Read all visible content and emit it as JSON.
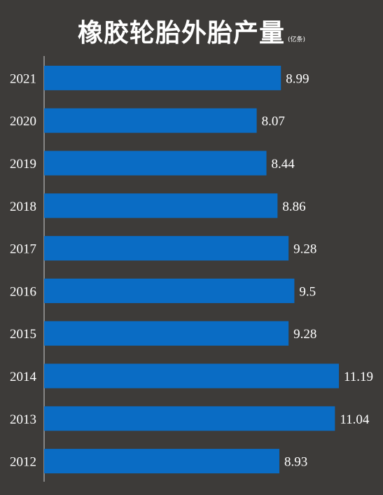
{
  "chart_data": {
    "type": "bar",
    "orientation": "horizontal",
    "title": "橡胶轮胎外胎产量",
    "unit": "(亿条)",
    "categories": [
      "2021",
      "2020",
      "2019",
      "2018",
      "2017",
      "2016",
      "2015",
      "2014",
      "2013",
      "2012"
    ],
    "values": [
      8.99,
      8.07,
      8.44,
      8.86,
      9.28,
      9.5,
      9.28,
      11.19,
      11.04,
      8.93
    ],
    "data_labels": [
      "8.99",
      "8.07",
      "8.44",
      "8.86",
      "9.28",
      "9.5",
      "9.28",
      "11.19",
      "11.04",
      "8.93"
    ],
    "xlim": [
      0,
      11.19
    ],
    "grid": false,
    "legend": "none",
    "bar_color": "#0a6cc4",
    "background_color": "#3d3b39",
    "text_color": "#ffffff"
  }
}
